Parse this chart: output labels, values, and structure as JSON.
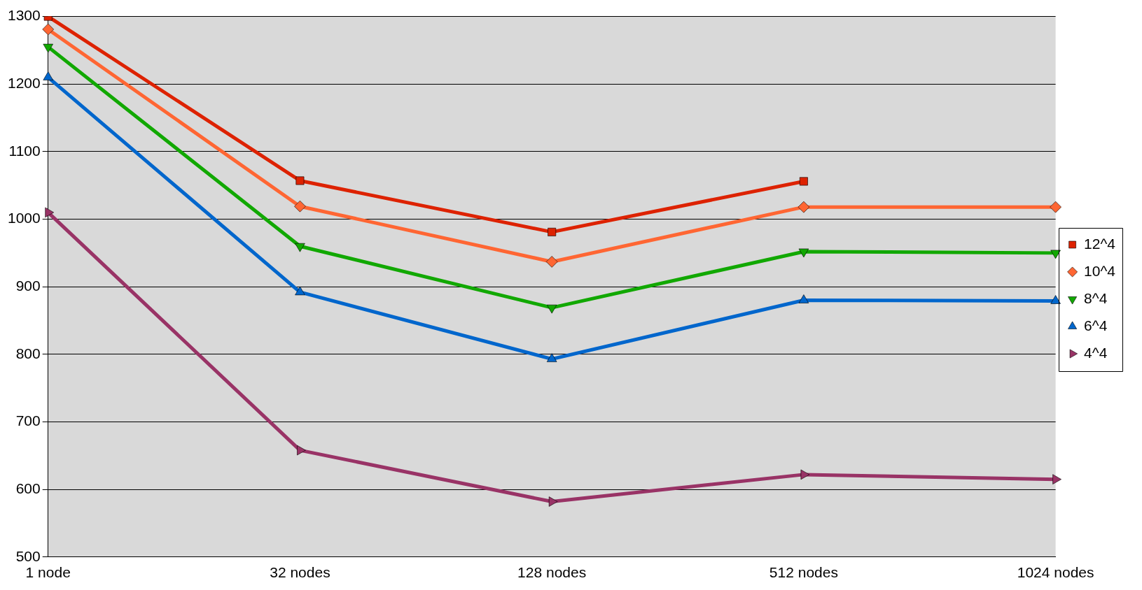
{
  "chart_data": {
    "type": "line",
    "categories": [
      "1 node",
      "32 nodes",
      "128 nodes",
      "512 nodes",
      "1024 nodes"
    ],
    "ylim": [
      500,
      1300
    ],
    "yticks": [
      500,
      600,
      700,
      800,
      900,
      1000,
      1100,
      1200,
      1300
    ],
    "grid": "y",
    "legend": "right",
    "series": [
      {
        "name": "12^4",
        "color": "#dd2200",
        "marker": "square",
        "values": [
          1300,
          1057,
          981,
          1056,
          null
        ]
      },
      {
        "name": "10^4",
        "color": "#ff6633",
        "marker": "diamond",
        "values": [
          1281,
          1019,
          937,
          1018,
          1018
        ]
      },
      {
        "name": "8^4",
        "color": "#11a800",
        "marker": "triangle-down",
        "values": [
          1255,
          960,
          869,
          952,
          950
        ]
      },
      {
        "name": "6^4",
        "color": "#0066cc",
        "marker": "triangle",
        "values": [
          1210,
          892,
          793,
          880,
          879
        ]
      },
      {
        "name": "4^4",
        "color": "#993366",
        "marker": "triangle-right",
        "values": [
          1010,
          658,
          582,
          622,
          615
        ]
      }
    ]
  }
}
